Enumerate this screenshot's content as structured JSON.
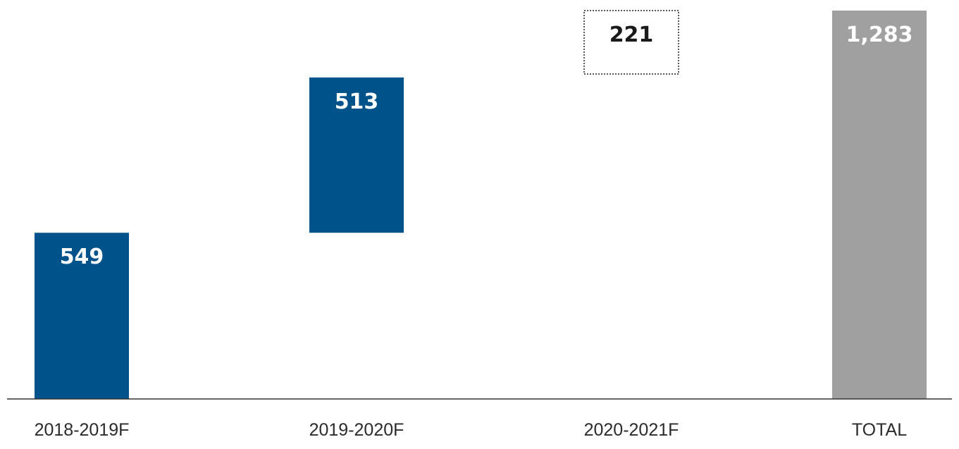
{
  "chart_data": {
    "type": "bar",
    "variant": "waterfall",
    "categories": [
      "2018-2019F",
      "2019-2020F",
      "2020-2021F",
      "TOTAL"
    ],
    "values": [
      549,
      513,
      221,
      1283
    ],
    "bar_kinds": [
      "increment",
      "increment",
      "outlined-increment",
      "total"
    ],
    "title": "",
    "xlabel": "",
    "ylabel": "",
    "ylim": [
      0,
      1283
    ],
    "grid": false,
    "legend": "none",
    "data_labels": [
      "549",
      "513",
      "221",
      "1,283"
    ]
  },
  "colors": {
    "increment": "#00538a",
    "total": "#a0a0a0",
    "axis": "#333333",
    "outline": "#555555",
    "label_on_bar": "#ffffff",
    "label_on_white": "#1a1a1a"
  }
}
